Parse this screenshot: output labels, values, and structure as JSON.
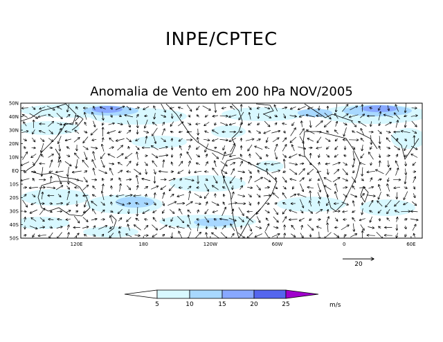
{
  "header": {
    "title": "INPE/CPTEC",
    "subtitle": "Anomalia de Vento em 200 hPa NOV/2005"
  },
  "map": {
    "lat_labels": [
      "50N",
      "40N",
      "30N",
      "20N",
      "10N",
      "EQ",
      "10S",
      "20S",
      "30S",
      "40S",
      "50S"
    ],
    "lon_labels": [
      {
        "text": "120E",
        "lon": 120
      },
      {
        "text": "180",
        "lon": 180
      },
      {
        "text": "120W",
        "lon": 240
      },
      {
        "text": "60W",
        "lon": 300
      },
      {
        "text": "0",
        "lon": 360
      },
      {
        "text": "60E",
        "lon": 420
      }
    ],
    "lon_range": [
      70,
      430
    ],
    "lat_range": [
      -50,
      50
    ],
    "reference_vector": {
      "value": "20"
    }
  },
  "colorbar": {
    "labels": [
      "5",
      "10",
      "15",
      "20",
      "25"
    ],
    "unit": "m/s",
    "colors": [
      "#ffffff",
      "#d8f8ff",
      "#a8d8ff",
      "#88a8ff",
      "#5566ee",
      "#a000cc"
    ]
  }
}
